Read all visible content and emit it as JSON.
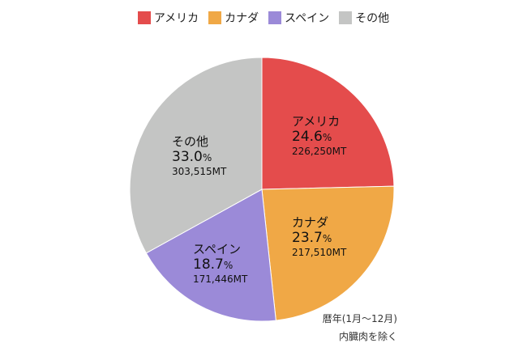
{
  "chart_data": {
    "type": "pie",
    "slices": [
      {
        "label": "アメリカ",
        "percent": "24.6",
        "value_text": "226,250MT",
        "value": 226250,
        "color": "#E44C4C"
      },
      {
        "label": "カナダ",
        "percent": "23.7",
        "value_text": "217,510MT",
        "value": 217510,
        "color": "#F0A846"
      },
      {
        "label": "スペイン",
        "percent": "18.7",
        "value_text": "171,446MT",
        "value": 171446,
        "color": "#9B8AD8"
      },
      {
        "label": "その他",
        "percent": "33.0",
        "value_text": "303,515MT",
        "value": 303515,
        "color": "#C4C5C4"
      }
    ],
    "percent_suffix": "%",
    "legend_position": "top",
    "notes": [
      "暦年(1月〜12月)",
      "内臓肉を除く"
    ]
  }
}
